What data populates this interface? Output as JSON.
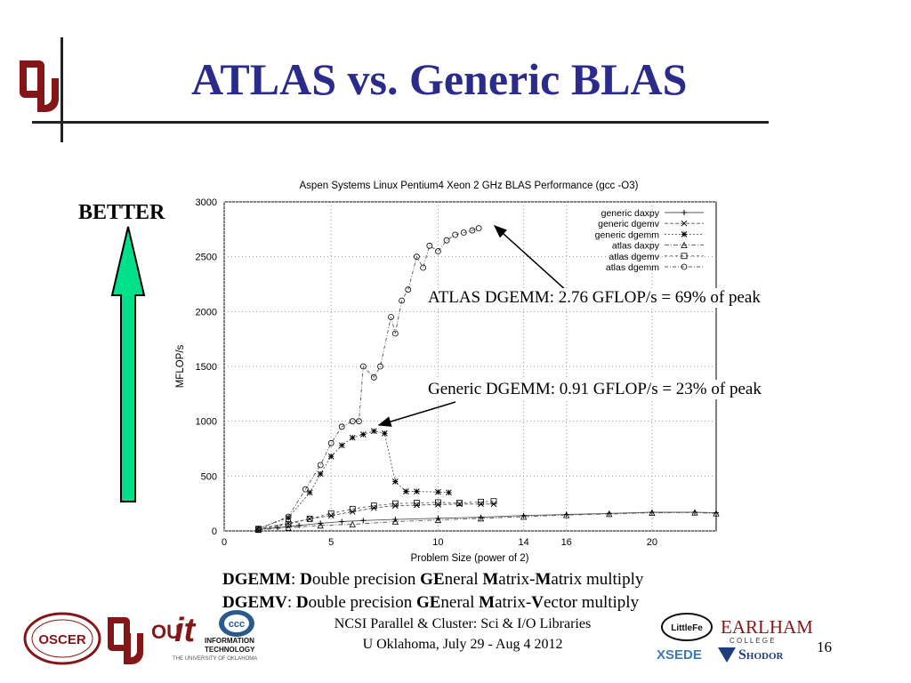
{
  "slide": {
    "title": "ATLAS vs. Generic BLAS",
    "better_label": "BETTER",
    "atlas_callout": "ATLAS DGEMM:   2.76 GFLOP/s = 69% of peak",
    "generic_callout": "Generic DGEMM:   0.91 GFLOP/s = 23% of peak",
    "definitions": [
      {
        "term": "DGEMM",
        "parts": [
          [
            "D",
            true
          ],
          [
            "ouble precision ",
            false
          ],
          [
            "GE",
            true
          ],
          [
            "neral ",
            false
          ],
          [
            "M",
            true
          ],
          [
            "atrix-",
            false
          ],
          [
            "M",
            true
          ],
          [
            "atrix multiply",
            false
          ]
        ]
      },
      {
        "term": "DGEMV",
        "parts": [
          [
            "D",
            true
          ],
          [
            "ouble precision ",
            false
          ],
          [
            "GE",
            true
          ],
          [
            "neral ",
            false
          ],
          [
            "M",
            true
          ],
          [
            "atrix-",
            false
          ],
          [
            "V",
            true
          ],
          [
            "ector multiply",
            false
          ]
        ]
      }
    ],
    "footer_line1": "NCSI Parallel & Cluster: Sci & I/O Libraries",
    "footer_line2": "U Oklahoma, July 29 - Aug 4 2012",
    "page_number": "16",
    "logos": {
      "oscer": "OSCER",
      "it_big": "it",
      "it_line1": "INFORMATION",
      "it_line2": "TECHNOLOGY",
      "it_line3": "THE UNIVERSITY OF OKLAHOMA",
      "ccc": "ccc",
      "littlefe": "LittleFe",
      "earlham": "EARLHAM",
      "college": "C O L L E G E",
      "xsede": "XSEDE",
      "shodor": "Shodor"
    },
    "colors": {
      "title": "#2b2b8c",
      "arrow_fill": "#00e08a",
      "ou_crimson": "#841617"
    }
  },
  "chart_data": {
    "type": "line",
    "title": "Aspen Systems Linux Pentium4 Xeon 2 GHz BLAS Performance (gcc -O3)",
    "xlabel": "Problem Size (power of 2)",
    "ylabel": "MFLOP/s",
    "xlim": [
      0,
      23
    ],
    "ylim": [
      0,
      3000
    ],
    "xticks": [
      0,
      5,
      10,
      14,
      16,
      20
    ],
    "yticks": [
      0,
      500,
      1000,
      1500,
      2000,
      2500,
      3000
    ],
    "grid": true,
    "legend_position": "top-right",
    "series": [
      {
        "name": "generic daxpy",
        "marker": "+",
        "points": [
          [
            1.6,
            15
          ],
          [
            2.5,
            30
          ],
          [
            3.5,
            50
          ],
          [
            4.5,
            70
          ],
          [
            5.5,
            85
          ],
          [
            6.5,
            95
          ],
          [
            8,
            105
          ],
          [
            10,
            115
          ],
          [
            12,
            125
          ],
          [
            14,
            140
          ],
          [
            16,
            150
          ],
          [
            18,
            160
          ],
          [
            20,
            170
          ],
          [
            22,
            170
          ],
          [
            23,
            165
          ]
        ]
      },
      {
        "name": "generic dgemv",
        "marker": "x",
        "points": [
          [
            1.6,
            20
          ],
          [
            3,
            70
          ],
          [
            4,
            110
          ],
          [
            5,
            140
          ],
          [
            6,
            175
          ],
          [
            7,
            210
          ],
          [
            8,
            230
          ],
          [
            9,
            235
          ],
          [
            10,
            240
          ],
          [
            11,
            245
          ],
          [
            12,
            245
          ],
          [
            12.6,
            245
          ]
        ]
      },
      {
        "name": "generic dgemm",
        "marker": "*",
        "points": [
          [
            1.6,
            20
          ],
          [
            3,
            120
          ],
          [
            4,
            350
          ],
          [
            4.5,
            520
          ],
          [
            5,
            680
          ],
          [
            5.5,
            780
          ],
          [
            6,
            850
          ],
          [
            6.5,
            880
          ],
          [
            7,
            910
          ],
          [
            7.5,
            890
          ],
          [
            8,
            450
          ],
          [
            8.5,
            360
          ],
          [
            9,
            360
          ],
          [
            10,
            355
          ],
          [
            10.5,
            350
          ]
        ]
      },
      {
        "name": "atlas  daxpy",
        "marker": "triangle",
        "points": [
          [
            1.6,
            10
          ],
          [
            3,
            30
          ],
          [
            4.5,
            50
          ],
          [
            6,
            60
          ],
          [
            8,
            85
          ],
          [
            10,
            100
          ],
          [
            12,
            115
          ],
          [
            14,
            130
          ],
          [
            16,
            145
          ],
          [
            18,
            155
          ],
          [
            20,
            165
          ],
          [
            22,
            168
          ],
          [
            23,
            160
          ]
        ]
      },
      {
        "name": "atlas  dgemv",
        "marker": "square",
        "points": [
          [
            1.6,
            15
          ],
          [
            3,
            60
          ],
          [
            4,
            110
          ],
          [
            5,
            160
          ],
          [
            6,
            200
          ],
          [
            7,
            230
          ],
          [
            8,
            250
          ],
          [
            9,
            255
          ],
          [
            10,
            260
          ],
          [
            11,
            255
          ],
          [
            12,
            265
          ],
          [
            12.6,
            270
          ]
        ]
      },
      {
        "name": "atlas  dgemm",
        "marker": "circle",
        "points": [
          [
            1.6,
            20
          ],
          [
            3,
            130
          ],
          [
            3.8,
            380
          ],
          [
            4.5,
            600
          ],
          [
            5,
            800
          ],
          [
            5.5,
            950
          ],
          [
            6,
            1000
          ],
          [
            6.3,
            1000
          ],
          [
            6.5,
            1500
          ],
          [
            7,
            1400
          ],
          [
            7.3,
            1500
          ],
          [
            7.8,
            1950
          ],
          [
            8,
            1800
          ],
          [
            8.3,
            2100
          ],
          [
            8.6,
            2200
          ],
          [
            9,
            2500
          ],
          [
            9.3,
            2400
          ],
          [
            9.6,
            2600
          ],
          [
            10,
            2550
          ],
          [
            10.4,
            2650
          ],
          [
            10.8,
            2700
          ],
          [
            11.2,
            2720
          ],
          [
            11.6,
            2740
          ],
          [
            11.9,
            2760
          ]
        ]
      }
    ]
  }
}
